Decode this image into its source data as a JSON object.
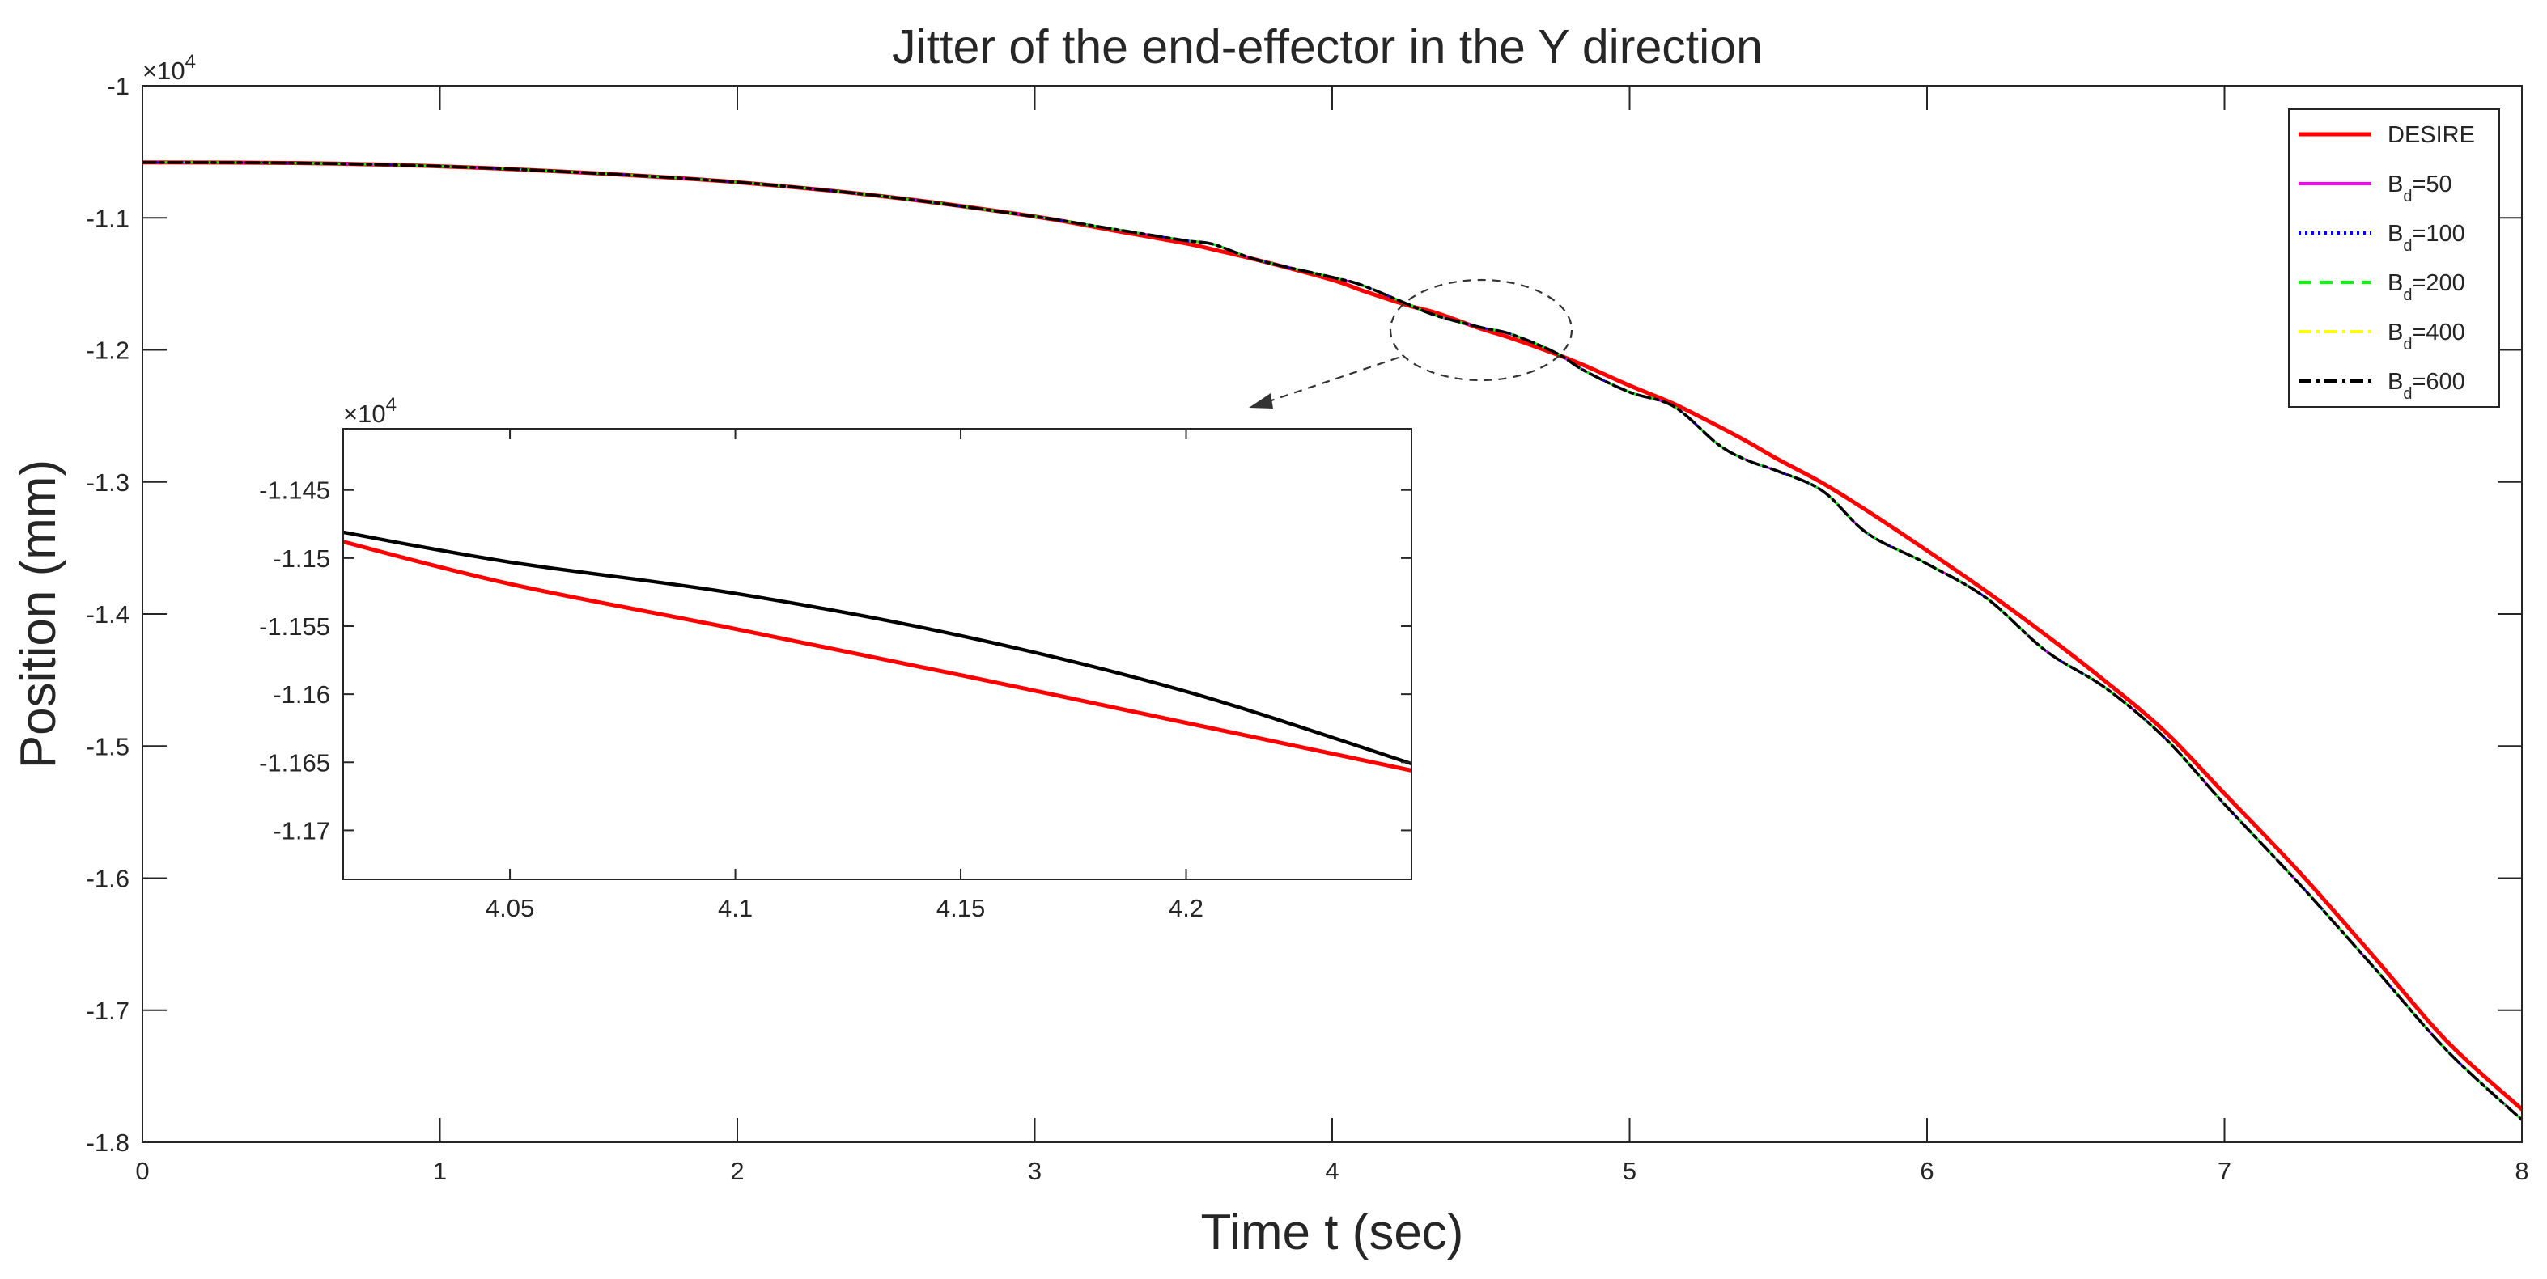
{
  "chart_data": {
    "type": "line",
    "title": "Jitter of the end-effector in the Y direction",
    "xlabel": "Time t (sec)",
    "ylabel": "Position (mm)",
    "xlim": [
      0,
      8
    ],
    "ylim": [
      -18000,
      -10000
    ],
    "y_exponent_label": "×10",
    "y_exponent": "4",
    "x_ticks": [
      0,
      1,
      2,
      3,
      4,
      5,
      6,
      7,
      8
    ],
    "x_tick_labels": [
      "0",
      "1",
      "2",
      "3",
      "4",
      "5",
      "6",
      "7",
      "8"
    ],
    "y_ticks": [
      -10000,
      -11000,
      -12000,
      -13000,
      -14000,
      -15000,
      -16000,
      -17000,
      -18000
    ],
    "y_tick_labels": [
      "-1",
      "-1.1",
      "-1.2",
      "-1.3",
      "-1.4",
      "-1.5",
      "-1.6",
      "-1.7",
      "-1.8"
    ],
    "grid": false,
    "legend_position": "top-right",
    "legend": [
      {
        "base": "DESIRE",
        "sub": "",
        "suffix": "",
        "color": "#ff0000",
        "dash": "solid"
      },
      {
        "base": "B",
        "sub": "d",
        "suffix": "=50",
        "color": "#ff00ff",
        "dash": "solid"
      },
      {
        "base": "B",
        "sub": "d",
        "suffix": "=100",
        "color": "#0000ff",
        "dash": "dotted"
      },
      {
        "base": "B",
        "sub": "d",
        "suffix": "=200",
        "color": "#00ff00",
        "dash": "dashed"
      },
      {
        "base": "B",
        "sub": "d",
        "suffix": "=400",
        "color": "#ffff00",
        "dash": "dashdot"
      },
      {
        "base": "B",
        "sub": "d",
        "suffix": "=600",
        "color": "#000000",
        "dash": "dashdot"
      }
    ],
    "x": [
      0,
      0.5,
      1,
      1.5,
      2,
      2.5,
      3,
      3.25,
      3.5,
      3.6,
      3.75,
      4,
      4.1,
      4.25,
      4.35,
      4.5,
      4.6,
      4.75,
      4.85,
      5,
      5.15,
      5.3,
      5.4,
      5.5,
      5.65,
      5.8,
      6,
      6.2,
      6.4,
      6.6,
      6.8,
      7,
      7.25,
      7.5,
      7.75,
      8
    ],
    "series": [
      {
        "name": "DESIRE",
        "color": "#ff0000",
        "values": [
          -10580,
          -10585,
          -10610,
          -10660,
          -10730,
          -10840,
          -10990,
          -11090,
          -11190,
          -11240,
          -11320,
          -11470,
          -11550,
          -11660,
          -11720,
          -11840,
          -11910,
          -12030,
          -12120,
          -12270,
          -12410,
          -12580,
          -12700,
          -12830,
          -13010,
          -13220,
          -13520,
          -13830,
          -14160,
          -14510,
          -14890,
          -15360,
          -15950,
          -16590,
          -17240,
          -17750
        ]
      },
      {
        "name": "Bd=50",
        "color": "#ff00ff",
        "values": [
          -10580,
          -10585,
          -10610,
          -10660,
          -10730,
          -10840,
          -10990,
          -11080,
          -11170,
          -11200,
          -11320,
          -11450,
          -11510,
          -11650,
          -11740,
          -11830,
          -11880,
          -12020,
          -12160,
          -12320,
          -12430,
          -12720,
          -12840,
          -12920,
          -13070,
          -13390,
          -13620,
          -13880,
          -14280,
          -14560,
          -14940,
          -15440,
          -16040,
          -16670,
          -17310,
          -17830
        ]
      },
      {
        "name": "Bd=100",
        "color": "#0000ff",
        "values": [
          -10580,
          -10585,
          -10610,
          -10660,
          -10730,
          -10840,
          -10990,
          -11080,
          -11170,
          -11200,
          -11320,
          -11450,
          -11510,
          -11650,
          -11740,
          -11830,
          -11880,
          -12020,
          -12160,
          -12320,
          -12430,
          -12720,
          -12840,
          -12920,
          -13070,
          -13390,
          -13620,
          -13880,
          -14280,
          -14560,
          -14940,
          -15440,
          -16040,
          -16670,
          -17310,
          -17830
        ]
      },
      {
        "name": "Bd=200",
        "color": "#00ff00",
        "values": [
          -10580,
          -10585,
          -10610,
          -10660,
          -10730,
          -10840,
          -10990,
          -11080,
          -11170,
          -11200,
          -11320,
          -11450,
          -11510,
          -11650,
          -11740,
          -11830,
          -11880,
          -12020,
          -12160,
          -12320,
          -12430,
          -12720,
          -12840,
          -12920,
          -13070,
          -13390,
          -13620,
          -13880,
          -14280,
          -14560,
          -14940,
          -15440,
          -16040,
          -16670,
          -17310,
          -17830
        ]
      },
      {
        "name": "Bd=400",
        "color": "#ffff00",
        "values": [
          -10580,
          -10585,
          -10610,
          -10660,
          -10730,
          -10840,
          -10990,
          -11080,
          -11170,
          -11200,
          -11320,
          -11450,
          -11510,
          -11650,
          -11740,
          -11830,
          -11880,
          -12020,
          -12160,
          -12320,
          -12430,
          -12720,
          -12840,
          -12920,
          -13070,
          -13390,
          -13620,
          -13880,
          -14280,
          -14560,
          -14940,
          -15440,
          -16040,
          -16670,
          -17310,
          -17830
        ]
      },
      {
        "name": "Bd=600",
        "color": "#000000",
        "values": [
          -10580,
          -10585,
          -10610,
          -10660,
          -10730,
          -10840,
          -10990,
          -11080,
          -11170,
          -11200,
          -11320,
          -11450,
          -11510,
          -11650,
          -11740,
          -11830,
          -11880,
          -12020,
          -12160,
          -12320,
          -12430,
          -12720,
          -12840,
          -12920,
          -13070,
          -13390,
          -13620,
          -13880,
          -14280,
          -14560,
          -14940,
          -15440,
          -16040,
          -16670,
          -17310,
          -17830
        ]
      }
    ],
    "inset": {
      "xlim": [
        4.013,
        4.25
      ],
      "ylim": [
        -11736,
        -11405
      ],
      "y_exponent_label": "×10",
      "y_exponent": "4",
      "x_ticks": [
        4.05,
        4.1,
        4.15,
        4.2
      ],
      "x_tick_labels": [
        "4.05",
        "4.1",
        "4.15",
        "4.2"
      ],
      "y_ticks": [
        -11450,
        -11500,
        -11550,
        -11600,
        -11650,
        -11700
      ],
      "y_tick_labels": [
        "-1.145",
        "-1.15",
        "-1.155",
        "-1.16",
        "-1.165",
        "-1.17"
      ],
      "x": [
        4.013,
        4.05,
        4.1,
        4.15,
        4.2,
        4.25
      ],
      "series": [
        {
          "name": "DESIRE",
          "color": "#ff0000",
          "values": [
            -11488,
            -11519,
            -11552,
            -11586,
            -11621,
            -11656
          ]
        },
        {
          "name": "Bd=600",
          "color": "#000000",
          "values": [
            -11481,
            -11503,
            -11526,
            -11557,
            -11598,
            -11651
          ]
        }
      ]
    }
  }
}
